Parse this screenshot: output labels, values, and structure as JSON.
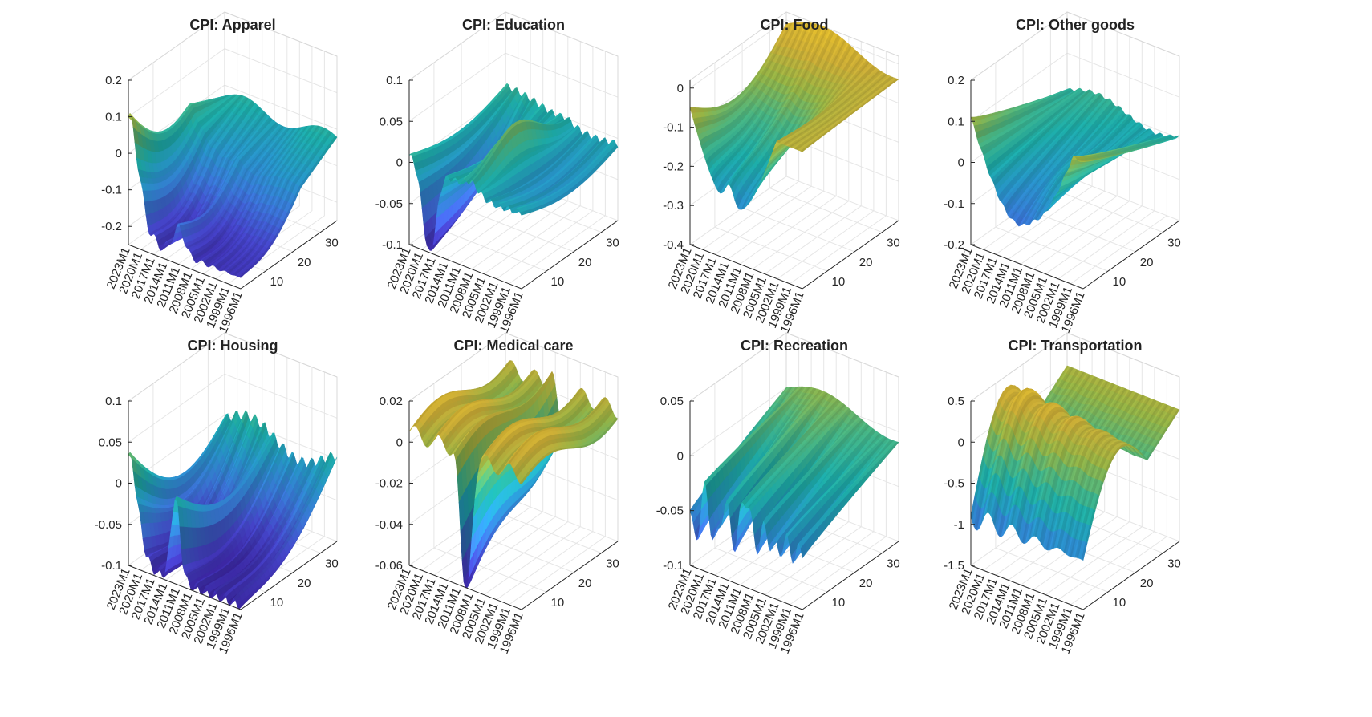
{
  "figure": {
    "description_rows": 2,
    "description_cols": 4
  },
  "colors": {
    "colormap": [
      "#3e26a8",
      "#4a4ad8",
      "#3e7fe6",
      "#2a9fd6",
      "#1fb8b4",
      "#4ec08a",
      "#9fbf4a",
      "#d8b83a",
      "#f0c830"
    ]
  },
  "chart_data": [
    {
      "type": "surface",
      "title": "CPI: Apparel",
      "zticks": [
        "0.2",
        "0.1",
        "0",
        "-0.1",
        "-0.2"
      ],
      "zvals": [
        0.2,
        0.1,
        0,
        -0.1,
        -0.2
      ],
      "zlim": [
        -0.25,
        0.2
      ],
      "date_ticks": [
        "2023M1",
        "2020M1",
        "2017M1",
        "2014M1",
        "2011M1",
        "2008M1",
        "2005M1",
        "2002M1",
        "1999M1",
        "1996M1"
      ],
      "horizon_ticks": [
        "10",
        "20",
        "30"
      ],
      "horizon_range": [
        1,
        36
      ],
      "front_profile": [
        0.1,
        0.08,
        0.05,
        0.02,
        -0.04,
        -0.12,
        -0.18,
        -0.21,
        -0.22,
        -0.21,
        -0.19,
        -0.2,
        -0.21,
        -0.2,
        -0.18
      ],
      "shape": "apparel"
    },
    {
      "type": "surface",
      "title": "CPI: Education",
      "zticks": [
        "0.1",
        "0.05",
        "0",
        "-0.05",
        "-0.1"
      ],
      "zvals": [
        0.1,
        0.05,
        0,
        -0.05,
        -0.1
      ],
      "zlim": [
        -0.1,
        0.1
      ],
      "date_ticks": [
        "2023M1",
        "2020M1",
        "2017M1",
        "2014M1",
        "2011M1",
        "2008M1",
        "2005M1",
        "2002M1",
        "1999M1",
        "1996M1"
      ],
      "horizon_ticks": [
        "10",
        "20",
        "30"
      ],
      "horizon_range": [
        1,
        36
      ],
      "shape": "education"
    },
    {
      "type": "surface",
      "title": "CPI: Food",
      "zticks": [
        "0",
        "-0.1",
        "-0.2",
        "-0.3",
        "-0.4"
      ],
      "zvals": [
        0,
        -0.1,
        -0.2,
        -0.3,
        -0.4
      ],
      "zlim": [
        -0.4,
        0.02
      ],
      "date_ticks": [
        "2023M1",
        "2020M1",
        "2017M1",
        "2014M1",
        "2011M1",
        "2008M1",
        "2005M1",
        "2002M1",
        "1999M1",
        "1996M1"
      ],
      "horizon_ticks": [
        "10",
        "20",
        "30"
      ],
      "horizon_range": [
        1,
        36
      ],
      "shape": "food"
    },
    {
      "type": "surface",
      "title": "CPI: Other goods",
      "zticks": [
        "0.2",
        "0.1",
        "0",
        "-0.1",
        "-0.2"
      ],
      "zvals": [
        0.2,
        0.1,
        0,
        -0.1,
        -0.2
      ],
      "zlim": [
        -0.2,
        0.2
      ],
      "date_ticks": [
        "2023M1",
        "2020M1",
        "2017M1",
        "2014M1",
        "2011M1",
        "2008M1",
        "2005M1",
        "2002M1",
        "1999M1",
        "1996M1"
      ],
      "horizon_ticks": [
        "10",
        "20",
        "30"
      ],
      "horizon_range": [
        1,
        36
      ],
      "shape": "other"
    },
    {
      "type": "surface",
      "title": "CPI: Housing",
      "zticks": [
        "0.1",
        "0.05",
        "0",
        "-0.05",
        "-0.1"
      ],
      "zvals": [
        0.1,
        0.05,
        0,
        -0.05,
        -0.1
      ],
      "zlim": [
        -0.1,
        0.1
      ],
      "date_ticks": [
        "2023M1",
        "2020M1",
        "2017M1",
        "2014M1",
        "2011M1",
        "2008M1",
        "2005M1",
        "2002M1",
        "1999M1",
        "1996M1"
      ],
      "horizon_ticks": [
        "10",
        "20",
        "30"
      ],
      "horizon_range": [
        1,
        36
      ],
      "shape": "housing"
    },
    {
      "type": "surface",
      "title": "CPI: Medical care",
      "zticks": [
        "0.02",
        "0",
        "-0.02",
        "-0.04",
        "-0.06"
      ],
      "zvals": [
        0.02,
        0,
        -0.02,
        -0.04,
        -0.06
      ],
      "zlim": [
        -0.06,
        0.02
      ],
      "date_ticks": [
        "2023M1",
        "2020M1",
        "2017M1",
        "2014M1",
        "2011M1",
        "2008M1",
        "2005M1",
        "2002M1",
        "1999M1",
        "1996M1"
      ],
      "horizon_ticks": [
        "10",
        "20",
        "30"
      ],
      "horizon_range": [
        1,
        36
      ],
      "shape": "medical"
    },
    {
      "type": "surface",
      "title": "CPI: Recreation",
      "zticks": [
        "0.05",
        "0",
        "-0.05",
        "-0.1"
      ],
      "zvals": [
        0.05,
        0,
        -0.05,
        -0.1
      ],
      "zlim": [
        -0.1,
        0.05
      ],
      "date_ticks": [
        "2023M1",
        "2020M1",
        "2017M1",
        "2014M1",
        "2011M1",
        "2008M1",
        "2005M1",
        "2002M1",
        "1999M1",
        "1996M1"
      ],
      "horizon_ticks": [
        "10",
        "20",
        "30"
      ],
      "horizon_range": [
        1,
        36
      ],
      "shape": "recreation"
    },
    {
      "type": "surface",
      "title": "CPI: Transportation",
      "zticks": [
        "0.5",
        "0",
        "-0.5",
        "-1",
        "-1.5"
      ],
      "zvals": [
        0.5,
        0,
        -0.5,
        -1,
        -1.5
      ],
      "zlim": [
        -1.5,
        0.5
      ],
      "date_ticks": [
        "2023M1",
        "2020M1",
        "2017M1",
        "2014M1",
        "2011M1",
        "2008M1",
        "2005M1",
        "2002M1",
        "1999M1",
        "1996M1"
      ],
      "horizon_ticks": [
        "10",
        "20",
        "30"
      ],
      "horizon_range": [
        1,
        36
      ],
      "shape": "transport"
    }
  ]
}
